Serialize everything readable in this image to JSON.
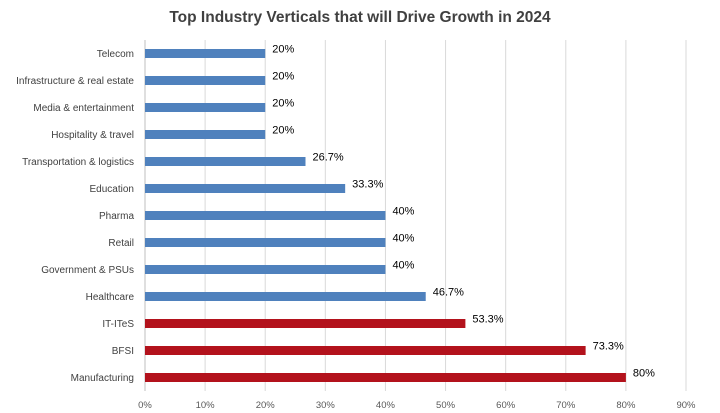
{
  "chart_data": {
    "type": "bar",
    "orientation": "horizontal",
    "title": "Top Industry Verticals that will Drive Growth in 2024",
    "xlabel": "",
    "ylabel": "",
    "xlim": [
      0,
      90
    ],
    "x_ticks": [
      0,
      10,
      20,
      30,
      40,
      50,
      60,
      70,
      80,
      90
    ],
    "x_tick_labels": [
      "0%",
      "10%",
      "20%",
      "30%",
      "40%",
      "50%",
      "60%",
      "70%",
      "80%",
      "90%"
    ],
    "grid": true,
    "legend": "none",
    "categories": [
      "Telecom",
      "Infrastructure & real estate",
      "Media & entertainment",
      "Hospitality & travel",
      "Transportation & logistics",
      "Education",
      "Pharma",
      "Retail",
      "Government & PSUs",
      "Healthcare",
      "IT-ITeS",
      "BFSI",
      "Manufacturing"
    ],
    "values": [
      20,
      20,
      20,
      20,
      26.7,
      33.3,
      40,
      40,
      40,
      46.7,
      53.3,
      73.3,
      80
    ],
    "data_labels": [
      "20%",
      "20%",
      "20%",
      "20%",
      "26.7%",
      "33.3%",
      "40%",
      "40%",
      "40%",
      "46.7%",
      "53.3%",
      "73.3%",
      "80%"
    ],
    "highlighted": [
      false,
      false,
      false,
      false,
      false,
      false,
      false,
      false,
      false,
      false,
      true,
      true,
      true
    ],
    "colors": {
      "default": "#4f81bd",
      "highlight": "#b3121c"
    }
  }
}
